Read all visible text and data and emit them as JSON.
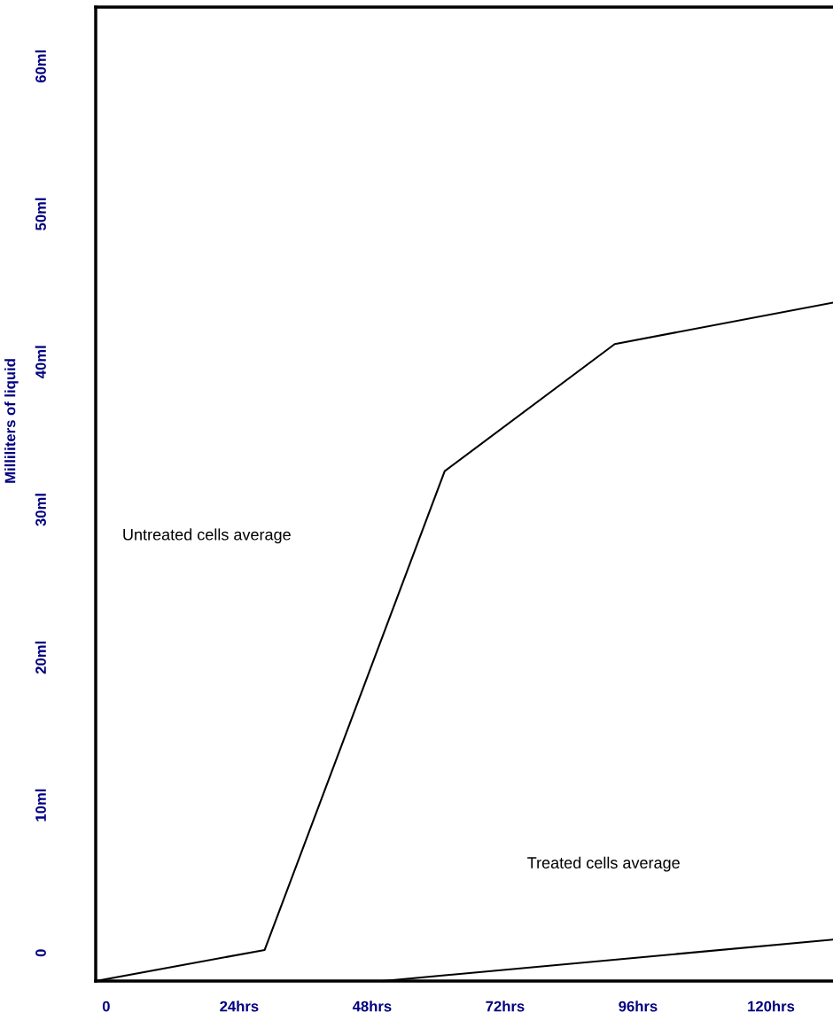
{
  "chart_data": {
    "type": "line",
    "ylabel": "Milliliters of liquid",
    "series": [
      {
        "color": "#000000",
        "x": [
          -1.9,
          28.6,
          61.1,
          91.8,
          131.2
        ],
        "values": [
          -1.9,
          0.2,
          32.6,
          41.2,
          44.0
        ]
      },
      {
        "color": "#000000",
        "x": [
          49.9,
          131.2
        ],
        "values": [
          -1.9,
          0.9
        ]
      }
    ],
    "xlim": [
      -1.9,
      131.2
    ],
    "xticks": [
      0,
      {
        "value": 24,
        "label": "24hrs"
      },
      {
        "value": 48,
        "label": "48hrs"
      },
      {
        "value": 72,
        "label": "72hrs"
      },
      {
        "value": 96,
        "label": "96hrs"
      },
      {
        "value": 120,
        "label": "120hrs"
      }
    ],
    "ylim": [
      -1.9,
      64.0
    ],
    "yticks": [
      0,
      {
        "value": 10,
        "label": "10ml"
      },
      {
        "value": 20,
        "label": "20ml"
      },
      {
        "value": 30,
        "label": "30ml"
      },
      {
        "value": 40,
        "label": "40ml"
      },
      {
        "value": 50,
        "label": "50ml"
      },
      {
        "value": 60,
        "label": "60ml"
      }
    ],
    "annotations": [
      "Untreated cells average",
      "Treated cells average"
    ],
    "grid": false,
    "legend": false,
    "marker": "none",
    "line_style": "solid"
  }
}
